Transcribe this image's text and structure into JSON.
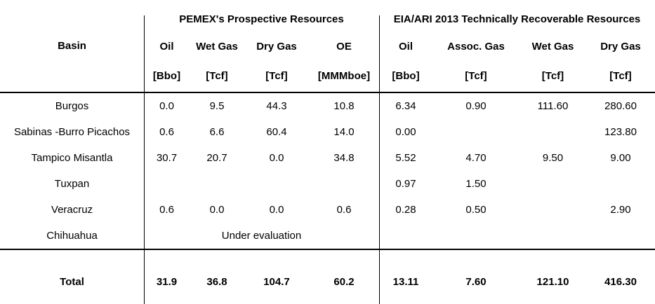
{
  "table": {
    "basin_header": "Basin",
    "groups": [
      {
        "title": "PEMEX's Prospective Resources",
        "columns": [
          {
            "name": "Oil",
            "unit": "[Bbo]"
          },
          {
            "name": "Wet Gas",
            "unit": "[Tcf]"
          },
          {
            "name": "Dry Gas",
            "unit": "[Tcf]"
          },
          {
            "name": "OE",
            "unit": "[MMMboe]"
          }
        ]
      },
      {
        "title": "EIA/ARI 2013 Technically Recoverable Resources",
        "columns": [
          {
            "name": "Oil",
            "unit": "[Bbo]"
          },
          {
            "name": "Assoc. Gas",
            "unit": "[Tcf]"
          },
          {
            "name": "Wet Gas",
            "unit": "[Tcf]"
          },
          {
            "name": "Dry Gas",
            "unit": "[Tcf]"
          }
        ]
      }
    ],
    "rows": [
      {
        "basin": "Burgos",
        "pemex": [
          "0.0",
          "9.5",
          "44.3",
          "10.8"
        ],
        "eia": [
          "6.34",
          "0.90",
          "111.60",
          "280.60"
        ]
      },
      {
        "basin": "Sabinas -Burro Picachos",
        "pemex": [
          "0.6",
          "6.6",
          "60.4",
          "14.0"
        ],
        "eia": [
          "0.00",
          "",
          "",
          "123.80"
        ]
      },
      {
        "basin": "Tampico Misantla",
        "pemex": [
          "30.7",
          "20.7",
          "0.0",
          "34.8"
        ],
        "eia": [
          "5.52",
          "4.70",
          "9.50",
          "9.00"
        ]
      },
      {
        "basin": "Tuxpan",
        "pemex": [
          "",
          "",
          "",
          ""
        ],
        "eia": [
          "0.97",
          "1.50",
          "",
          ""
        ]
      },
      {
        "basin": "Veracruz",
        "pemex": [
          "0.6",
          "0.0",
          "0.0",
          "0.6"
        ],
        "eia": [
          "0.28",
          "0.50",
          "",
          "2.90"
        ]
      },
      {
        "basin": "Chihuahua",
        "note": "Under evaluation",
        "eia": [
          "",
          "",
          "",
          ""
        ]
      }
    ],
    "total": {
      "basin": "Total",
      "pemex": [
        "31.9",
        "36.8",
        "104.7",
        "60.2"
      ],
      "eia": [
        "13.11",
        "7.60",
        "121.10",
        "416.30"
      ]
    }
  },
  "colors": {
    "text": "#000000",
    "rule": "#000000",
    "background": "#ffffff"
  }
}
